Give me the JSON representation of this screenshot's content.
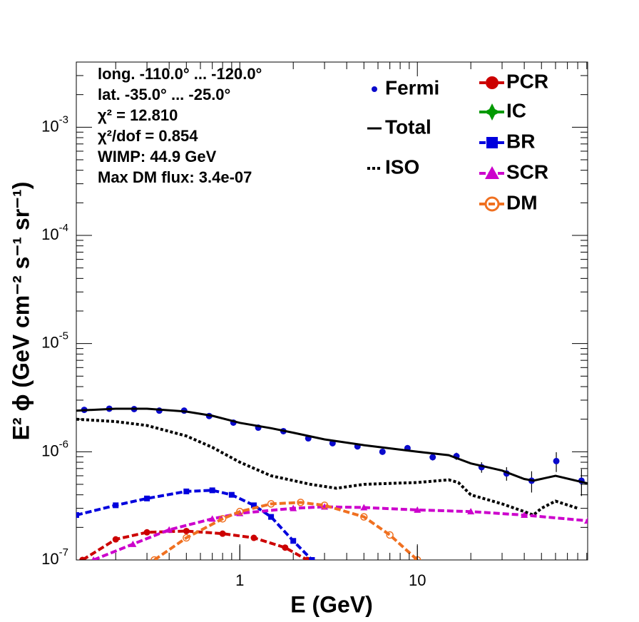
{
  "chart_data": {
    "type": "line",
    "xlabel": "E (GeV)",
    "ylabel": "E² ϕ (GeV cm⁻² s⁻¹ sr⁻¹)",
    "annotations": [
      "long. -110.0° ... -120.0°",
      "lat. -35.0° ... -25.0°",
      "χ² = 12.810",
      "χ²/dof = 0.854",
      "WIMP: 44.9 GeV",
      "Max DM flux: 3.4e-07"
    ],
    "xlog": true,
    "ylog": true,
    "xlim": [
      0.12,
      91
    ],
    "ylim": [
      1e-07,
      0.004
    ],
    "xticks": [
      1,
      10
    ],
    "yticks": [
      {
        "value": 1e-07,
        "label": "10",
        "exponent": "-7"
      },
      {
        "value": 1e-06,
        "label": "10",
        "exponent": "-6"
      },
      {
        "value": 1e-05,
        "label": "10",
        "exponent": "-5"
      },
      {
        "value": 0.0001,
        "label": "10",
        "exponent": "-4"
      },
      {
        "value": 0.001,
        "label": "10",
        "exponent": "-3"
      }
    ],
    "series": [
      {
        "name": "Fermi",
        "color": "#0a0acc",
        "style": "points",
        "x": [
          0.133,
          0.184,
          0.254,
          0.352,
          0.486,
          0.672,
          0.92,
          1.27,
          1.76,
          2.43,
          3.33,
          4.6,
          6.36,
          8.8,
          12.2,
          16.6,
          23,
          31.8,
          44,
          60.6,
          84
        ],
        "values": [
          2.44e-06,
          2.5e-06,
          2.48e-06,
          2.4e-06,
          2.4e-06,
          2.14e-06,
          1.86e-06,
          1.67e-06,
          1.55e-06,
          1.33e-06,
          1.2e-06,
          1.12e-06,
          1e-06,
          1.08e-06,
          8.9e-07,
          9.1e-07,
          7.2e-07,
          6.3e-07,
          5.4e-07,
          8.2e-07,
          5.4e-07
        ],
        "errors": [
          4e-08,
          4e-08,
          4e-08,
          4e-08,
          4e-08,
          4e-08,
          3e-08,
          3e-08,
          3e-08,
          3e-08,
          3e-08,
          3e-08,
          4e-08,
          5e-08,
          6e-08,
          7e-08,
          8e-08,
          9e-08,
          1.2e-07,
          1.7e-07,
          1.5e-07
        ]
      },
      {
        "name": "Total",
        "color": "#000000",
        "style": "solid",
        "x": [
          0.12,
          0.2,
          0.3,
          0.5,
          0.7,
          1,
          1.5,
          2,
          3,
          5,
          10,
          15,
          20,
          30,
          40,
          45,
          60,
          91
        ],
        "values": [
          2.4e-06,
          2.5e-06,
          2.5e-06,
          2.35e-06,
          2.15e-06,
          1.85e-06,
          1.65e-06,
          1.5e-06,
          1.3e-06,
          1.15e-06,
          1e-06,
          9.3e-07,
          7.8e-07,
          6.7e-07,
          5.6e-07,
          5.4e-07,
          6e-07,
          5.1e-07
        ]
      },
      {
        "name": "ISO",
        "color": "#000000",
        "style": "dotted",
        "x": [
          0.12,
          0.2,
          0.3,
          0.5,
          0.7,
          1,
          1.5,
          2.5,
          3.5,
          5,
          10,
          15,
          17,
          20,
          30,
          40,
          45,
          50,
          60,
          80
        ],
        "values": [
          2e-06,
          1.9e-06,
          1.75e-06,
          1.4e-06,
          1.1e-06,
          8e-07,
          6e-07,
          5e-07,
          4.6e-07,
          5e-07,
          5.2e-07,
          5.5e-07,
          5.2e-07,
          4e-07,
          3.3e-07,
          2.8e-07,
          2.6e-07,
          3e-07,
          3.5e-07,
          3e-07
        ]
      },
      {
        "name": "PCR",
        "color": "#cc0000",
        "style": "dashed",
        "marker": "circle",
        "x": [
          0.13,
          0.2,
          0.3,
          0.5,
          0.8,
          1.2,
          1.8,
          2.4
        ],
        "values": [
          1e-07,
          1.55e-07,
          1.8e-07,
          1.85e-07,
          1.75e-07,
          1.6e-07,
          1.3e-07,
          1e-07
        ]
      },
      {
        "name": "IC",
        "color": "#009900",
        "style": "dashed",
        "marker": "star",
        "x": [],
        "values": []
      },
      {
        "name": "BR",
        "color": "#0000dd",
        "style": "dashed",
        "marker": "square",
        "x": [
          0.12,
          0.2,
          0.3,
          0.5,
          0.7,
          0.9,
          1.2,
          1.5,
          2,
          2.55
        ],
        "values": [
          2.6e-07,
          3.2e-07,
          3.7e-07,
          4.3e-07,
          4.4e-07,
          4e-07,
          3.2e-07,
          2.5e-07,
          1.5e-07,
          1e-07
        ]
      },
      {
        "name": "SCR",
        "color": "#cc00cc",
        "style": "dashed",
        "marker": "triangle",
        "x": [
          0.15,
          0.25,
          0.4,
          0.7,
          1,
          2,
          3,
          5,
          10,
          20,
          40,
          91
        ],
        "values": [
          1e-07,
          1.4e-07,
          1.9e-07,
          2.4e-07,
          2.7e-07,
          3e-07,
          3.1e-07,
          3.05e-07,
          2.9e-07,
          2.8e-07,
          2.6e-07,
          2.3e-07
        ]
      },
      {
        "name": "DM",
        "color": "#f07020",
        "style": "dashed",
        "marker": "opencircle",
        "x": [
          0.33,
          0.5,
          0.8,
          1,
          1.5,
          2.2,
          3,
          5,
          7,
          10
        ],
        "values": [
          1e-07,
          1.6e-07,
          2.4e-07,
          2.8e-07,
          3.3e-07,
          3.4e-07,
          3.2e-07,
          2.5e-07,
          1.7e-07,
          1e-07
        ]
      }
    ]
  }
}
